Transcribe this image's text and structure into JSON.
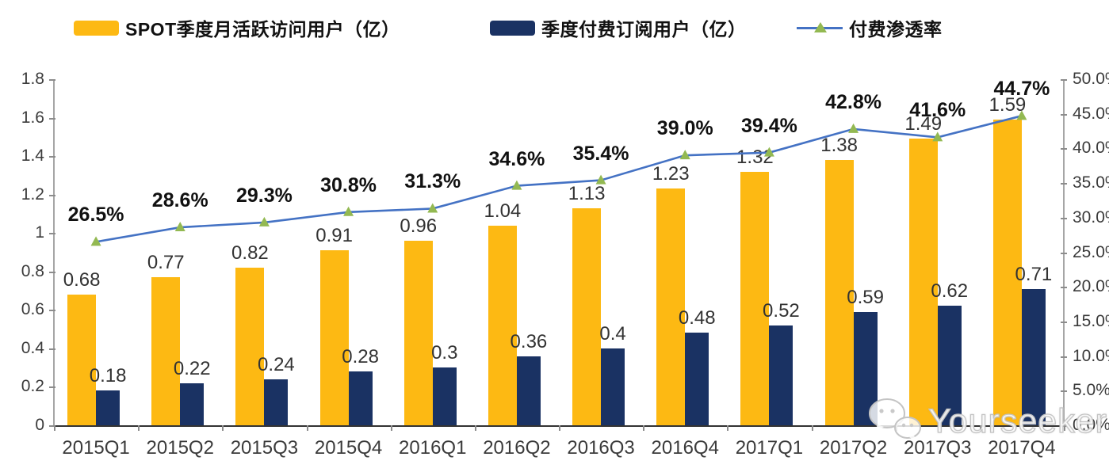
{
  "legend": {
    "items": [
      {
        "label": "SPOT季度月活跃访问用户（亿）"
      },
      {
        "label": "季度付费订阅用户（亿）"
      },
      {
        "label": "付费渗透率"
      }
    ]
  },
  "colors": {
    "mau_bar": "#FDB913",
    "sub_bar": "#1A3263",
    "line": "#4472C4",
    "marker": "#93B952",
    "axis": "#A6A6A6",
    "bottom_axis": "#333333"
  },
  "chart_data": {
    "type": "bar",
    "subtype": "clustered-bars-with-line-dual-axis",
    "categories": [
      "2015Q1",
      "2015Q2",
      "2015Q3",
      "2015Q4",
      "2016Q1",
      "2016Q2",
      "2016Q3",
      "2016Q4",
      "2017Q1",
      "2017Q2",
      "2017Q3",
      "2017Q4"
    ],
    "series": [
      {
        "name": "SPOT季度月活跃访问用户（亿）",
        "type": "bar",
        "axis": "left",
        "values": [
          0.68,
          0.77,
          0.82,
          0.91,
          0.96,
          1.04,
          1.13,
          1.23,
          1.32,
          1.38,
          1.49,
          1.59
        ],
        "labels": [
          "0.68",
          "0.77",
          "0.82",
          "0.91",
          "0.96",
          "1.04",
          "1.13",
          "1.23",
          "1.32",
          "1.38",
          "1.49",
          "1.59"
        ]
      },
      {
        "name": "季度付费订阅用户（亿）",
        "type": "bar",
        "axis": "left",
        "values": [
          0.18,
          0.22,
          0.24,
          0.28,
          0.3,
          0.36,
          0.4,
          0.48,
          0.52,
          0.59,
          0.62,
          0.71
        ],
        "labels": [
          "0.18",
          "0.22",
          "0.24",
          "0.28",
          "0.3",
          "0.36",
          "0.4",
          "0.48",
          "0.52",
          "0.59",
          "0.62",
          "0.71"
        ]
      },
      {
        "name": "付费渗透率",
        "type": "line",
        "axis": "right",
        "values": [
          26.5,
          28.6,
          29.3,
          30.8,
          31.3,
          34.6,
          35.4,
          39.0,
          39.4,
          42.8,
          41.6,
          44.7
        ],
        "labels": [
          "26.5%",
          "28.6%",
          "29.3%",
          "30.8%",
          "31.3%",
          "34.6%",
          "35.4%",
          "39.0%",
          "39.4%",
          "42.8%",
          "41.6%",
          "44.7%"
        ]
      }
    ],
    "left_axis": {
      "min": 0,
      "max": 1.8,
      "ticks": [
        "1.8",
        "1.6",
        "1.4",
        "1.2",
        "1",
        "0.8",
        "0.6",
        "0.4",
        "0.2",
        "0"
      ]
    },
    "right_axis": {
      "min": 0,
      "max": 50,
      "ticks": [
        "50.0%",
        "45.0%",
        "40.0%",
        "35.0%",
        "30.0%",
        "25.0%",
        "20.0%",
        "15.0%",
        "10.0%",
        "5.0%",
        "0.0%"
      ]
    },
    "grid": false,
    "legend_position": "top",
    "title": ""
  },
  "watermark": {
    "text": "Yourseeker"
  }
}
